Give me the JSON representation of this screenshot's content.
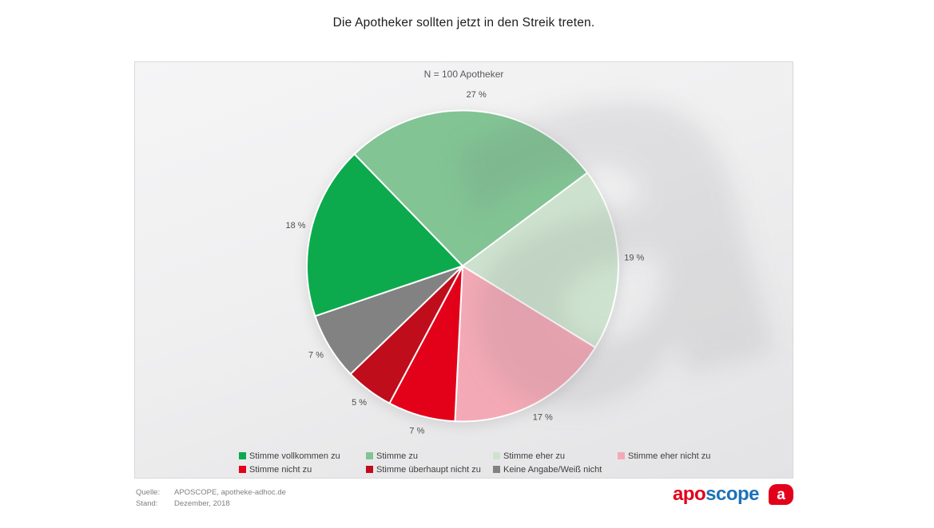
{
  "chart_data": {
    "type": "pie",
    "title": "Die Apotheker sollten jetzt in den Streik treten.",
    "n_label": "N = 100 Apotheker",
    "start_angle_deg": -44,
    "legend_position": "bottom",
    "segments": [
      {
        "name": "Stimme zu",
        "value": 27,
        "label": "27 %",
        "color": "#82c494"
      },
      {
        "name": "Stimme eher zu",
        "value": 19,
        "label": "19 %",
        "color": "#cee3cf"
      },
      {
        "name": "Stimme eher nicht zu",
        "value": 17,
        "label": "17 %",
        "color": "#f4aab6"
      },
      {
        "name": "Stimme nicht zu",
        "value": 7,
        "label": "7 %",
        "color": "#e30019"
      },
      {
        "name": "Stimme überhaupt nicht zu",
        "value": 5,
        "label": "5 %",
        "color": "#bf0d1c"
      },
      {
        "name": "Keine Angabe/Weiß nicht",
        "value": 7,
        "label": "7 %",
        "color": "#828282"
      },
      {
        "name": "Stimme vollkommen zu",
        "value": 18,
        "label": "18 %",
        "color": "#0caa4d"
      }
    ],
    "legend": [
      {
        "label": "Stimme vollkommen zu",
        "color": "#0caa4d"
      },
      {
        "label": "Stimme zu",
        "color": "#82c494"
      },
      {
        "label": "Stimme eher zu",
        "color": "#cee3cf"
      },
      {
        "label": "Stimme eher nicht zu",
        "color": "#f4aab6"
      },
      {
        "label": "Stimme nicht zu",
        "color": "#e30019"
      },
      {
        "label": "Stimme überhaupt nicht zu",
        "color": "#bf0d1c"
      },
      {
        "label": "Keine Angabe/Weiß nicht",
        "color": "#828282"
      }
    ]
  },
  "footer": {
    "quelle_label": "Quelle:",
    "quelle_value": "APOSCOPE, apotheke-adhoc.de",
    "stand_label": "Stand:",
    "stand_value": "Dezember, 2018"
  },
  "logo": {
    "part1": "apo",
    "part2": "scope",
    "icon_letter": "a",
    "color_red": "#e2001a",
    "color_blue": "#1d71b8"
  },
  "watermark_letter": "a"
}
